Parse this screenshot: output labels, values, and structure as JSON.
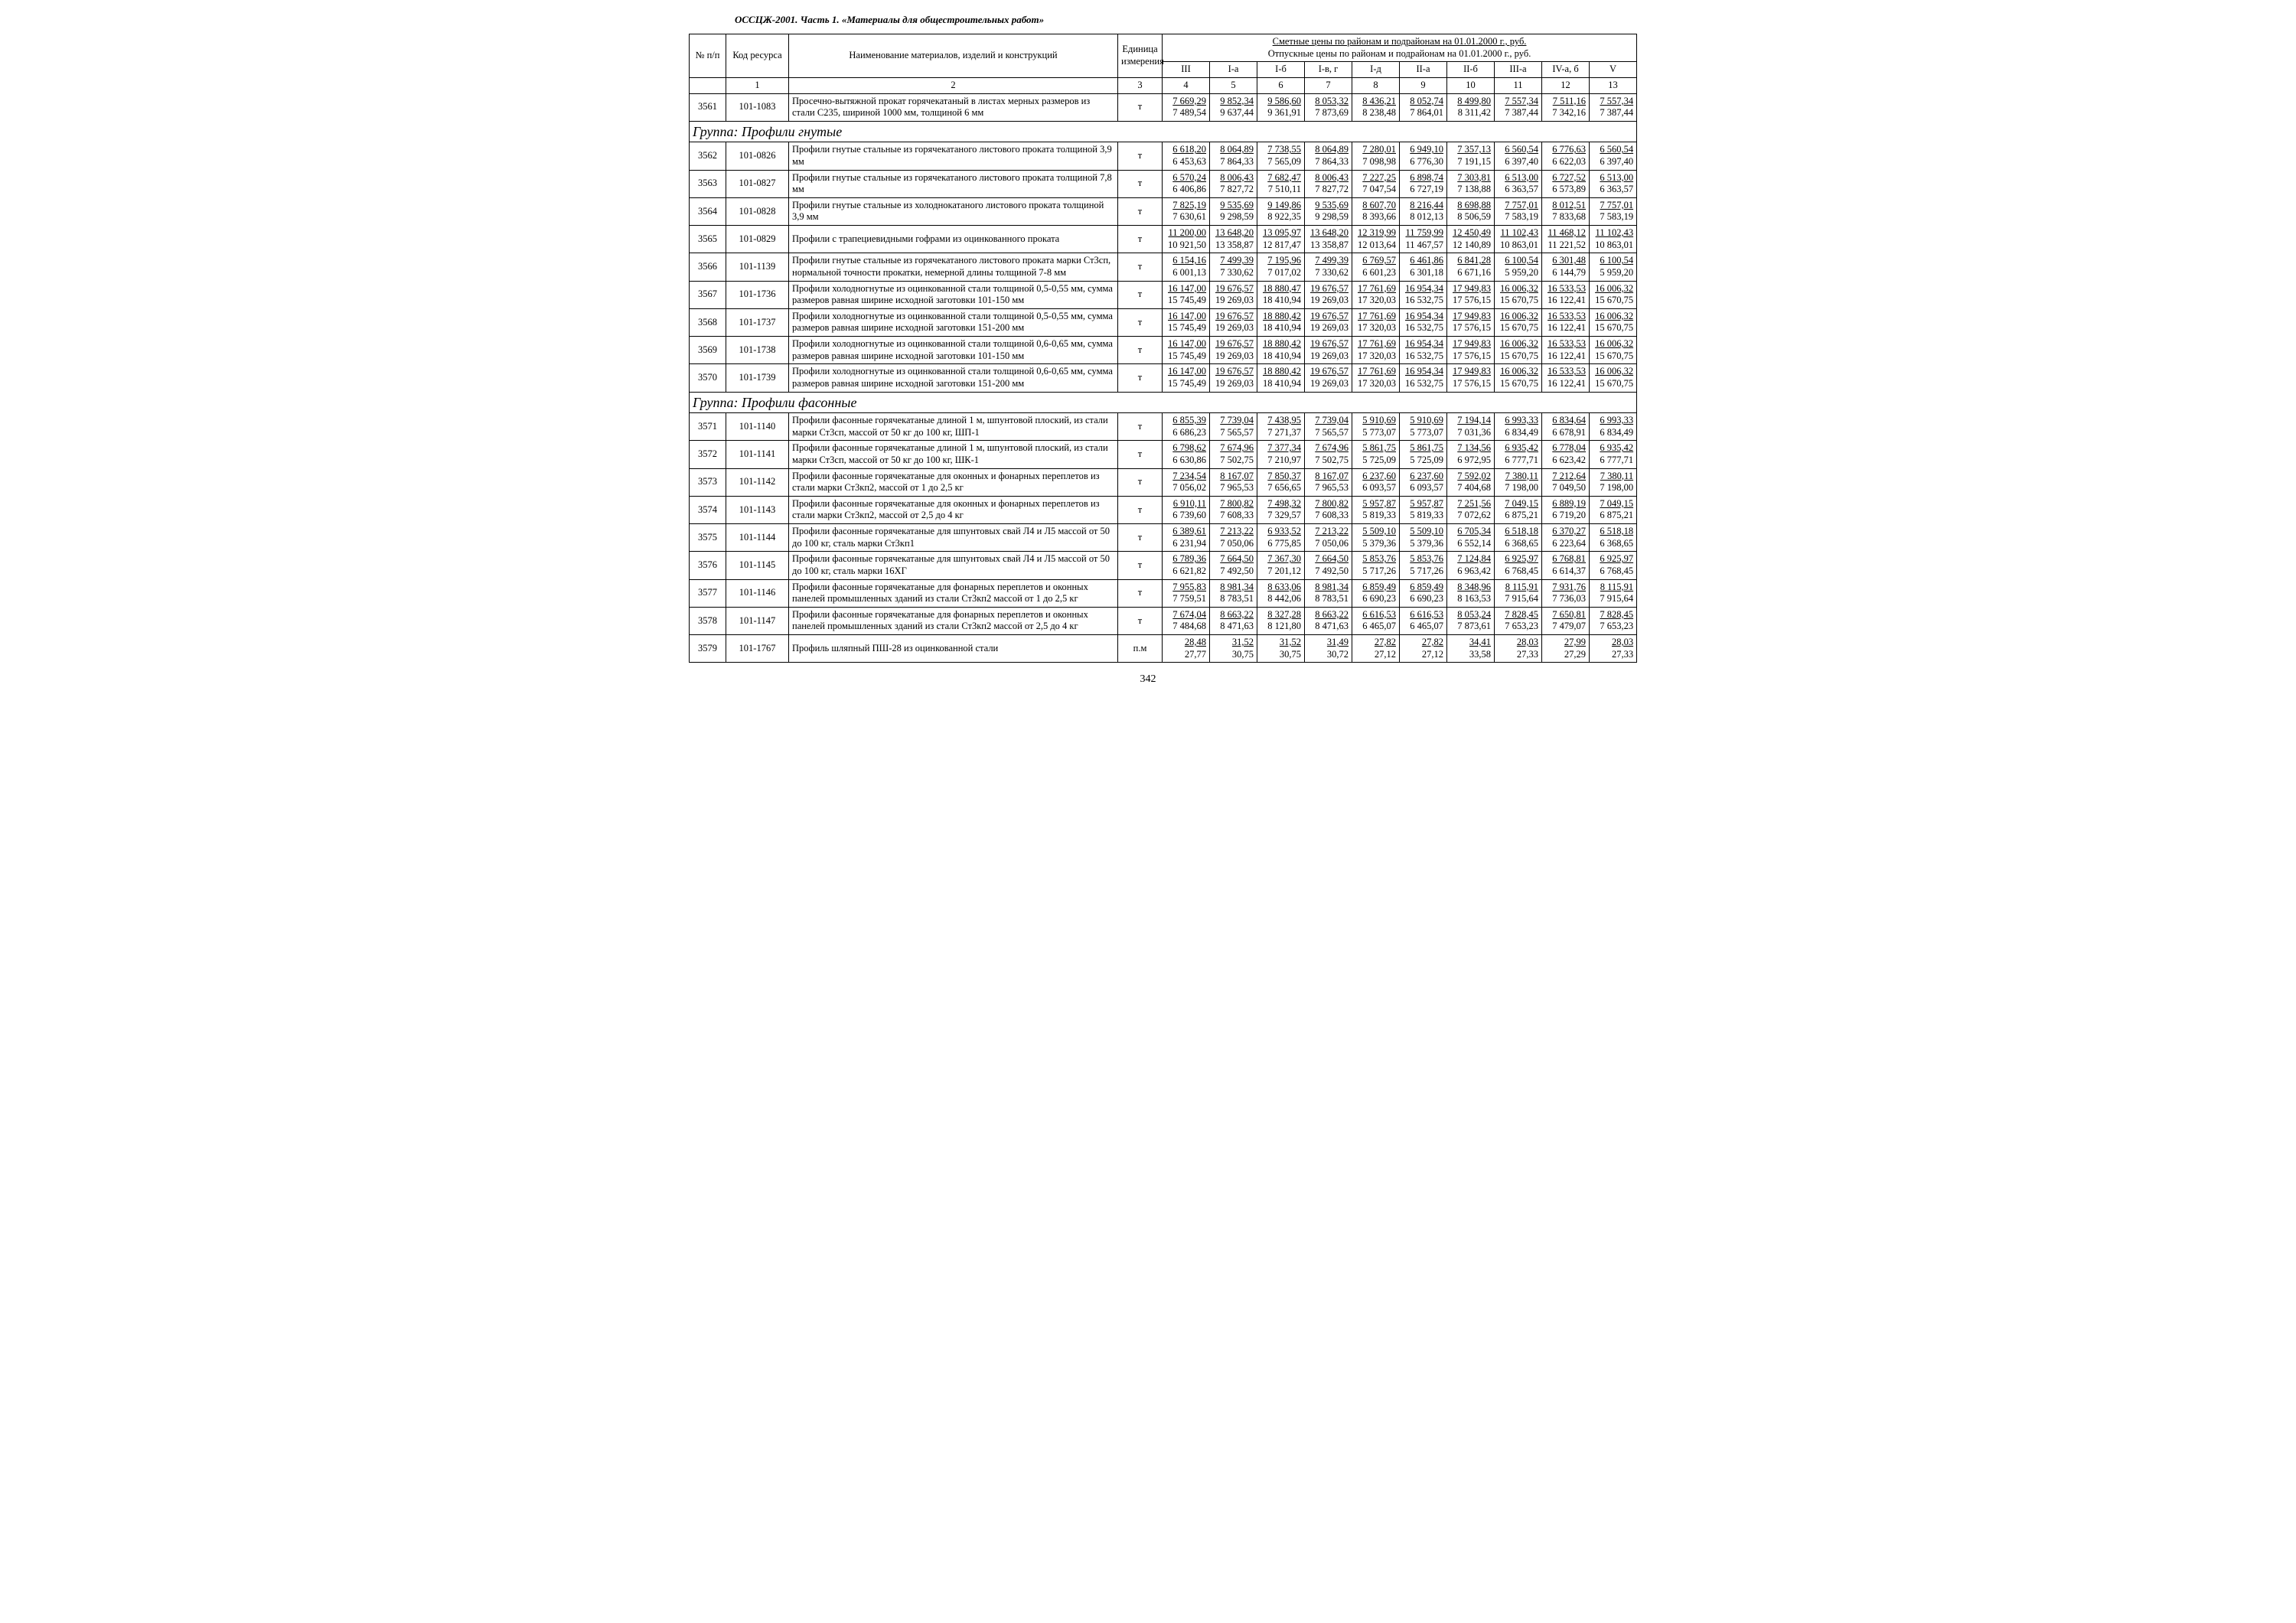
{
  "doc_title": "ОССЦЖ-2001. Часть 1. «Материалы для общестроительных работ»",
  "page_number": "342",
  "header": {
    "col_num": "№ п/п",
    "col_code": "Код ресурса",
    "col_name": "Наименование материалов, изделий и конструкций",
    "col_unit": "Единица измерения",
    "prices_line1": "Сметные цены по районам и подрайонам на 01.01.2000 г., руб.",
    "prices_line2": "Отпускные цены по районам и подрайонам на 01.01.2000 г., руб.",
    "region_labels": [
      "III",
      "I-а",
      "I-б",
      "I-в, г",
      "I-д",
      "II-а",
      "II-б",
      "III-а",
      "IV-а, б",
      "V"
    ],
    "subnum_row": [
      "",
      "1",
      "2",
      "3",
      "4",
      "5",
      "6",
      "7",
      "8",
      "9",
      "10",
      "11",
      "12",
      "13"
    ]
  },
  "groups": {
    "g1": "Группа: Профили гнутые",
    "g2": "Группа: Профили фасонные"
  },
  "rows": [
    {
      "n": "3561",
      "code": "101-1083",
      "name": "Просечно-вытяжной прокат горячекатаный в листах мерных размеров из стали С235, шириной 1000 мм, толщиной 6 мм",
      "unit": "т",
      "p": [
        [
          "7 669,29",
          "7 489,54"
        ],
        [
          "9 852,34",
          "9 637,44"
        ],
        [
          "9 586,60",
          "9 361,91"
        ],
        [
          "8 053,32",
          "7 873,69"
        ],
        [
          "8 436,21",
          "8 238,48"
        ],
        [
          "8 052,74",
          "7 864,01"
        ],
        [
          "8 499,80",
          "8 311,42"
        ],
        [
          "7 557,34",
          "7 387,44"
        ],
        [
          "7 511,16",
          "7 342,16"
        ],
        [
          "7 557,34",
          "7 387,44"
        ]
      ]
    },
    {
      "group": "g1"
    },
    {
      "n": "3562",
      "code": "101-0826",
      "name": "Профили гнутые стальные из горячекатаного листового проката толщиной 3,9 мм",
      "unit": "т",
      "p": [
        [
          "6 618,20",
          "6 453,63"
        ],
        [
          "8 064,89",
          "7 864,33"
        ],
        [
          "7 738,55",
          "7 565,09"
        ],
        [
          "8 064,89",
          "7 864,33"
        ],
        [
          "7 280,01",
          "7 098,98"
        ],
        [
          "6 949,10",
          "6 776,30"
        ],
        [
          "7 357,13",
          "7 191,15"
        ],
        [
          "6 560,54",
          "6 397,40"
        ],
        [
          "6 776,63",
          "6 622,03"
        ],
        [
          "6 560,54",
          "6 397,40"
        ]
      ]
    },
    {
      "n": "3563",
      "code": "101-0827",
      "name": "Профили гнутые стальные из горячекатаного листового проката толщиной 7,8 мм",
      "unit": "т",
      "p": [
        [
          "6 570,24",
          "6 406,86"
        ],
        [
          "8 006,43",
          "7 827,72"
        ],
        [
          "7 682,47",
          "7 510,11"
        ],
        [
          "8 006,43",
          "7 827,72"
        ],
        [
          "7 227,25",
          "7 047,54"
        ],
        [
          "6 898,74",
          "6 727,19"
        ],
        [
          "7 303,81",
          "7 138,88"
        ],
        [
          "6 513,00",
          "6 363,57"
        ],
        [
          "6 727,52",
          "6 573,89"
        ],
        [
          "6 513,00",
          "6 363,57"
        ]
      ]
    },
    {
      "n": "3564",
      "code": "101-0828",
      "name": "Профили гнутые стальные из холоднокатаного листового проката толщиной 3,9 мм",
      "unit": "т",
      "p": [
        [
          "7 825,19",
          "7 630,61"
        ],
        [
          "9 535,69",
          "9 298,59"
        ],
        [
          "9 149,86",
          "8 922,35"
        ],
        [
          "9 535,69",
          "9 298,59"
        ],
        [
          "8 607,70",
          "8 393,66"
        ],
        [
          "8 216,44",
          "8 012,13"
        ],
        [
          "8 698,88",
          "8 506,59"
        ],
        [
          "7 757,01",
          "7 583,19"
        ],
        [
          "8 012,51",
          "7 833,68"
        ],
        [
          "7 757,01",
          "7 583,19"
        ]
      ]
    },
    {
      "n": "3565",
      "code": "101-0829",
      "name": "Профили с трапециевидными гофрами из оцинкованного проката",
      "unit": "т",
      "p": [
        [
          "11 200,00",
          "10 921,50"
        ],
        [
          "13 648,20",
          "13 358,87"
        ],
        [
          "13 095,97",
          "12 817,47"
        ],
        [
          "13 648,20",
          "13 358,87"
        ],
        [
          "12 319,99",
          "12 013,64"
        ],
        [
          "11 759,99",
          "11 467,57"
        ],
        [
          "12 450,49",
          "12 140,89"
        ],
        [
          "11 102,43",
          "10 863,01"
        ],
        [
          "11 468,12",
          "11 221,52"
        ],
        [
          "11 102,43",
          "10 863,01"
        ]
      ]
    },
    {
      "n": "3566",
      "code": "101-1139",
      "name": "Профили гнутые стальные из горячекатаного листового проката марки Ст3сп, нормальной точности прокатки, немерной длины толщиной 7-8 мм",
      "unit": "т",
      "p": [
        [
          "6 154,16",
          "6 001,13"
        ],
        [
          "7 499,39",
          "7 330,62"
        ],
        [
          "7 195,96",
          "7 017,02"
        ],
        [
          "7 499,39",
          "7 330,62"
        ],
        [
          "6 769,57",
          "6 601,23"
        ],
        [
          "6 461,86",
          "6 301,18"
        ],
        [
          "6 841,28",
          "6 671,16"
        ],
        [
          "6 100,54",
          "5 959,20"
        ],
        [
          "6 301,48",
          "6 144,79"
        ],
        [
          "6 100,54",
          "5 959,20"
        ]
      ]
    },
    {
      "n": "3567",
      "code": "101-1736",
      "name": "Профили холодногнутые из оцинкованной стали толщиной 0,5-0,55 мм, сумма размеров равная ширине исходной заготовки 101-150 мм",
      "unit": "т",
      "p": [
        [
          "16 147,00",
          "15 745,49"
        ],
        [
          "19 676,57",
          "19 269,03"
        ],
        [
          "18 880,47",
          "18 410,94"
        ],
        [
          "19 676,57",
          "19 269,03"
        ],
        [
          "17 761,69",
          "17 320,03"
        ],
        [
          "16 954,34",
          "16 532,75"
        ],
        [
          "17 949,83",
          "17 576,15"
        ],
        [
          "16 006,32",
          "15 670,75"
        ],
        [
          "16 533,53",
          "16 122,41"
        ],
        [
          "16 006,32",
          "15 670,75"
        ]
      ]
    },
    {
      "n": "3568",
      "code": "101-1737",
      "name": "Профили холодногнутые из оцинкованной стали толщиной 0,5-0,55 мм, сумма размеров равная ширине исходной заготовки 151-200 мм",
      "unit": "т",
      "p": [
        [
          "16 147,00",
          "15 745,49"
        ],
        [
          "19 676,57",
          "19 269,03"
        ],
        [
          "18 880,42",
          "18 410,94"
        ],
        [
          "19 676,57",
          "19 269,03"
        ],
        [
          "17 761,69",
          "17 320,03"
        ],
        [
          "16 954,34",
          "16 532,75"
        ],
        [
          "17 949,83",
          "17 576,15"
        ],
        [
          "16 006,32",
          "15 670,75"
        ],
        [
          "16 533,53",
          "16 122,41"
        ],
        [
          "16 006,32",
          "15 670,75"
        ]
      ]
    },
    {
      "n": "3569",
      "code": "101-1738",
      "name": "Профили холодногнутые из оцинкованной стали толщиной 0,6-0,65 мм, сумма размеров равная ширине исходной заготовки 101-150 мм",
      "unit": "т",
      "p": [
        [
          "16 147,00",
          "15 745,49"
        ],
        [
          "19 676,57",
          "19 269,03"
        ],
        [
          "18 880,42",
          "18 410,94"
        ],
        [
          "19 676,57",
          "19 269,03"
        ],
        [
          "17 761,69",
          "17 320,03"
        ],
        [
          "16 954,34",
          "16 532,75"
        ],
        [
          "17 949,83",
          "17 576,15"
        ],
        [
          "16 006,32",
          "15 670,75"
        ],
        [
          "16 533,53",
          "16 122,41"
        ],
        [
          "16 006,32",
          "15 670,75"
        ]
      ]
    },
    {
      "n": "3570",
      "code": "101-1739",
      "name": "Профили холодногнутые из оцинкованной стали толщиной 0,6-0,65 мм, сумма размеров равная ширине исходной заготовки 151-200 мм",
      "unit": "т",
      "p": [
        [
          "16 147,00",
          "15 745,49"
        ],
        [
          "19 676,57",
          "19 269,03"
        ],
        [
          "18 880,42",
          "18 410,94"
        ],
        [
          "19 676,57",
          "19 269,03"
        ],
        [
          "17 761,69",
          "17 320,03"
        ],
        [
          "16 954,34",
          "16 532,75"
        ],
        [
          "17 949,83",
          "17 576,15"
        ],
        [
          "16 006,32",
          "15 670,75"
        ],
        [
          "16 533,53",
          "16 122,41"
        ],
        [
          "16 006,32",
          "15 670,75"
        ]
      ]
    },
    {
      "group": "g2"
    },
    {
      "n": "3571",
      "code": "101-1140",
      "name": "Профили фасонные горячекатаные длиной 1 м, шпунтовой плоский, из стали марки Ст3сп, массой от 50 кг до 100 кг, ШП-1",
      "unit": "т",
      "p": [
        [
          "6 855,39",
          "6 686,23"
        ],
        [
          "7 739,04",
          "7 565,57"
        ],
        [
          "7 438,95",
          "7 271,37"
        ],
        [
          "7 739,04",
          "7 565,57"
        ],
        [
          "5 910,69",
          "5 773,07"
        ],
        [
          "5 910,69",
          "5 773,07"
        ],
        [
          "7 194,14",
          "7 031,36"
        ],
        [
          "6 993,33",
          "6 834,49"
        ],
        [
          "6 834,64",
          "6 678,91"
        ],
        [
          "6 993,33",
          "6 834,49"
        ]
      ]
    },
    {
      "n": "3572",
      "code": "101-1141",
      "name": "Профили фасонные горячекатаные длиной 1 м, шпунтовой плоский, из стали марки Ст3сп, массой от 50 кг до 100 кг, ШК-1",
      "unit": "т",
      "p": [
        [
          "6 798,62",
          "6 630,86"
        ],
        [
          "7 674,96",
          "7 502,75"
        ],
        [
          "7 377,34",
          "7 210,97"
        ],
        [
          "7 674,96",
          "7 502,75"
        ],
        [
          "5 861,75",
          "5 725,09"
        ],
        [
          "5 861,75",
          "5 725,09"
        ],
        [
          "7 134,56",
          "6 972,95"
        ],
        [
          "6 935,42",
          "6 777,71"
        ],
        [
          "6 778,04",
          "6 623,42"
        ],
        [
          "6 935,42",
          "6 777,71"
        ]
      ]
    },
    {
      "n": "3573",
      "code": "101-1142",
      "name": "Профили фасонные горячекатаные для оконных и фонарных переплетов из стали марки Ст3кп2, массой от 1 до 2,5 кг",
      "unit": "т",
      "p": [
        [
          "7 234,54",
          "7 056,02"
        ],
        [
          "8 167,07",
          "7 965,53"
        ],
        [
          "7 850,37",
          "7 656,65"
        ],
        [
          "8 167,07",
          "7 965,53"
        ],
        [
          "6 237,60",
          "6 093,57"
        ],
        [
          "6 237,60",
          "6 093,57"
        ],
        [
          "7 592,02",
          "7 404,68"
        ],
        [
          "7 380,11",
          "7 198,00"
        ],
        [
          "7 212,64",
          "7 049,50"
        ],
        [
          "7 380,11",
          "7 198,00"
        ]
      ]
    },
    {
      "n": "3574",
      "code": "101-1143",
      "name": "Профили фасонные горячекатаные для оконных и фонарных переплетов из стали марки Ст3кп2, массой от 2,5 до 4 кг",
      "unit": "т",
      "p": [
        [
          "6 910,11",
          "6 739,60"
        ],
        [
          "7 800,82",
          "7 608,33"
        ],
        [
          "7 498,32",
          "7 329,57"
        ],
        [
          "7 800,82",
          "7 608,33"
        ],
        [
          "5 957,87",
          "5 819,33"
        ],
        [
          "5 957,87",
          "5 819,33"
        ],
        [
          "7 251,56",
          "7 072,62"
        ],
        [
          "7 049,15",
          "6 875,21"
        ],
        [
          "6 889,19",
          "6 719,20"
        ],
        [
          "7 049,15",
          "6 875,21"
        ]
      ]
    },
    {
      "n": "3575",
      "code": "101-1144",
      "name": "Профили фасонные горячекатаные для шпунтовых свай Л4 и Л5 массой от 50 до 100 кг, сталь марки Ст3кп1",
      "unit": "т",
      "p": [
        [
          "6 389,61",
          "6 231,94"
        ],
        [
          "7 213,22",
          "7 050,06"
        ],
        [
          "6 933,52",
          "6 775,85"
        ],
        [
          "7 213,22",
          "7 050,06"
        ],
        [
          "5 509,10",
          "5 379,36"
        ],
        [
          "5 509,10",
          "5 379,36"
        ],
        [
          "6 705,34",
          "6 552,14"
        ],
        [
          "6 518,18",
          "6 368,65"
        ],
        [
          "6 370,27",
          "6 223,64"
        ],
        [
          "6 518,18",
          "6 368,65"
        ]
      ]
    },
    {
      "n": "3576",
      "code": "101-1145",
      "name": "Профили фасонные горячекатаные для шпунтовых свай Л4 и Л5 массой от 50 до 100 кг, сталь марки 16ХГ",
      "unit": "т",
      "p": [
        [
          "6 789,36",
          "6 621,82"
        ],
        [
          "7 664,50",
          "7 492,50"
        ],
        [
          "7 367,30",
          "7 201,12"
        ],
        [
          "7 664,50",
          "7 492,50"
        ],
        [
          "5 853,76",
          "5 717,26"
        ],
        [
          "5 853,76",
          "5 717,26"
        ],
        [
          "7 124,84",
          "6 963,42"
        ],
        [
          "6 925,97",
          "6 768,45"
        ],
        [
          "6 768,81",
          "6 614,37"
        ],
        [
          "6 925,97",
          "6 768,45"
        ]
      ]
    },
    {
      "n": "3577",
      "code": "101-1146",
      "name": "Профили фасонные горячекатаные для фонарных переплетов и оконных панелей промышленных зданий из стали Ст3кп2 массой от 1 до 2,5 кг",
      "unit": "т",
      "p": [
        [
          "7 955,83",
          "7 759,51"
        ],
        [
          "8 981,34",
          "8 783,51"
        ],
        [
          "8 633,06",
          "8 442,06"
        ],
        [
          "8 981,34",
          "8 783,51"
        ],
        [
          "6 859,49",
          "6 690,23"
        ],
        [
          "6 859,49",
          "6 690,23"
        ],
        [
          "8 348,96",
          "8 163,53"
        ],
        [
          "8 115,91",
          "7 915,64"
        ],
        [
          "7 931,76",
          "7 736,03"
        ],
        [
          "8 115,91",
          "7 915,64"
        ]
      ]
    },
    {
      "n": "3578",
      "code": "101-1147",
      "name": "Профили фасонные горячекатаные для фонарных переплетов и оконных панелей промышленных зданий из стали Ст3кп2 массой от 2,5 до 4 кг",
      "unit": "т",
      "p": [
        [
          "7 674,04",
          "7 484,68"
        ],
        [
          "8 663,22",
          "8 471,63"
        ],
        [
          "8 327,28",
          "8 121,80"
        ],
        [
          "8 663,22",
          "8 471,63"
        ],
        [
          "6 616,53",
          "6 465,07"
        ],
        [
          "6 616,53",
          "6 465,07"
        ],
        [
          "8 053,24",
          "7 873,61"
        ],
        [
          "7 828,45",
          "7 653,23"
        ],
        [
          "7 650,81",
          "7 479,07"
        ],
        [
          "7 828,45",
          "7 653,23"
        ]
      ]
    },
    {
      "n": "3579",
      "code": "101-1767",
      "name": "Профиль шляпный ПШ-28 из оцинкованной стали",
      "unit": "п.м",
      "p": [
        [
          "28,48",
          "27,77"
        ],
        [
          "31,52",
          "30,75"
        ],
        [
          "31,52",
          "30,75"
        ],
        [
          "31,49",
          "30,72"
        ],
        [
          "27,82",
          "27,12"
        ],
        [
          "27,82",
          "27,12"
        ],
        [
          "34,41",
          "33,58"
        ],
        [
          "28,03",
          "27,33"
        ],
        [
          "27,99",
          "27,29"
        ],
        [
          "28,03",
          "27,33"
        ]
      ]
    }
  ]
}
